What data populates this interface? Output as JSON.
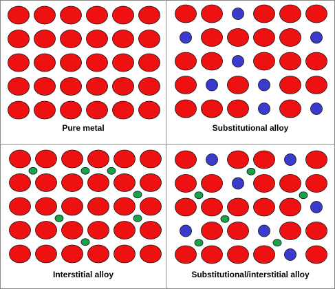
{
  "colors": {
    "metal_atom": "#ee1111",
    "substitutional_atom": "#3a3acc",
    "interstitial_atom": "#17a34a",
    "outline": "#111111",
    "divider": "#888888"
  },
  "panels": [
    {
      "id": "pure",
      "caption": "Pure metal",
      "grid": [
        [
          "M",
          "M",
          "M",
          "M",
          "M",
          "M"
        ],
        [
          "M",
          "M",
          "M",
          "M",
          "M",
          "M"
        ],
        [
          "M",
          "M",
          "M",
          "M",
          "M",
          "M"
        ],
        [
          "M",
          "M",
          "M",
          "M",
          "M",
          "M"
        ],
        [
          "M",
          "M",
          "M",
          "M",
          "M",
          "M"
        ]
      ],
      "interstitials": []
    },
    {
      "id": "subst",
      "caption": "Substitutional alloy",
      "grid": [
        [
          "M",
          "M",
          "S",
          "M",
          "M",
          "M"
        ],
        [
          "S",
          "M",
          "M",
          "M",
          "M",
          "S"
        ],
        [
          "M",
          "M",
          "S",
          "M",
          "M",
          "M"
        ],
        [
          "M",
          "S",
          "M",
          "S",
          "M",
          "M"
        ],
        [
          "M",
          "M",
          "M",
          "S",
          "M",
          "S"
        ]
      ],
      "interstitials": []
    },
    {
      "id": "inter",
      "caption": "Interstitial alloy",
      "grid": [
        [
          "M",
          "M",
          "M",
          "M",
          "M",
          "M"
        ],
        [
          "M",
          "M",
          "M",
          "M",
          "M",
          "M"
        ],
        [
          "M",
          "M",
          "M",
          "M",
          "M",
          "M"
        ],
        [
          "M",
          "M",
          "M",
          "M",
          "M",
          "M"
        ],
        [
          "M",
          "M",
          "M",
          "M",
          "M",
          "M"
        ]
      ],
      "interstitials": [
        [
          0,
          0
        ],
        [
          0,
          2
        ],
        [
          0,
          3
        ],
        [
          1,
          4
        ],
        [
          2,
          1
        ],
        [
          2,
          4
        ],
        [
          3,
          2
        ]
      ]
    },
    {
      "id": "both",
      "caption": "Substitutional/interstitial alloy",
      "grid": [
        [
          "M",
          "S",
          "M",
          "M",
          "S",
          "M"
        ],
        [
          "M",
          "M",
          "S",
          "M",
          "M",
          "M"
        ],
        [
          "M",
          "M",
          "M",
          "M",
          "M",
          "S"
        ],
        [
          "S",
          "M",
          "M",
          "S",
          "M",
          "M"
        ],
        [
          "M",
          "M",
          "M",
          "M",
          "S",
          "M"
        ]
      ],
      "interstitials": [
        [
          0,
          2
        ],
        [
          1,
          0
        ],
        [
          1,
          4
        ],
        [
          2,
          1
        ],
        [
          3,
          0
        ],
        [
          3,
          3
        ]
      ]
    }
  ]
}
